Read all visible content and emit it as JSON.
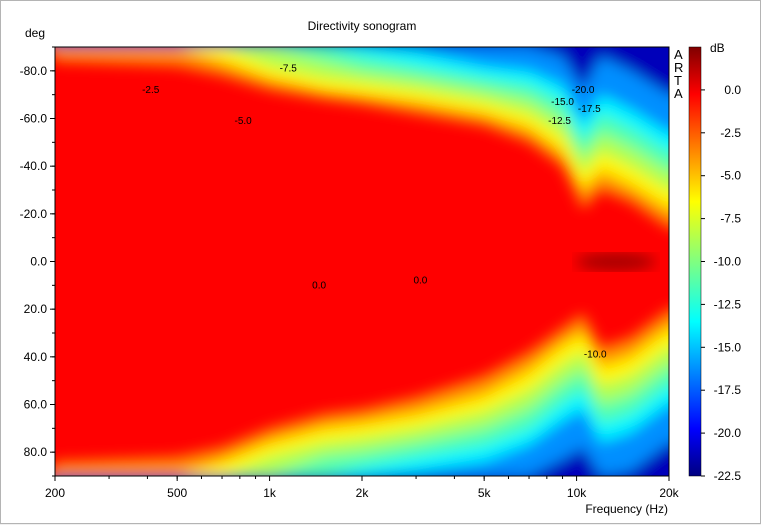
{
  "chart_data": {
    "type": "heatmap",
    "title": "Directivity sonogram",
    "xlabel": "Frequency (Hz)",
    "ylabel": "deg",
    "x_scale": "log",
    "xlim": [
      200,
      20000
    ],
    "ylim": [
      -90,
      90
    ],
    "x_ticks": [
      200,
      500,
      1000,
      2000,
      5000,
      10000,
      20000
    ],
    "x_tick_labels": [
      "200",
      "500",
      "1k",
      "2k",
      "5k",
      "10k",
      "20k"
    ],
    "y_ticks": [
      -80,
      -60,
      -40,
      -20,
      0,
      20,
      40,
      60,
      80
    ],
    "y_tick_labels": [
      "-80.0",
      "-60.0",
      "-40.0",
      "-20.0",
      "0.0",
      "20.0",
      "40.0",
      "60.0",
      "80.0"
    ],
    "colorbar": {
      "label": "dB",
      "range": [
        -22.5,
        2.5
      ],
      "ticks": [
        0,
        -2.5,
        -5,
        -7.5,
        -10,
        -12.5,
        -15,
        -17.5,
        -20,
        -22.5
      ],
      "tick_labels": [
        "0.0",
        "-2.5",
        "-5.0",
        "-7.5",
        "-10.0",
        "-12.5",
        "-15.0",
        "-17.5",
        "-20.0",
        "-22.5"
      ],
      "colormap": "jet"
    },
    "watermark": "ARTA",
    "annotations": [
      {
        "text": "-2.5",
        "freq": 410,
        "deg": -72
      },
      {
        "text": "-7.5",
        "freq": 1150,
        "deg": -81
      },
      {
        "text": "-5.0",
        "freq": 820,
        "deg": -59
      },
      {
        "text": "-20.0",
        "freq": 10500,
        "deg": -72
      },
      {
        "text": "-15.0",
        "freq": 9000,
        "deg": -67
      },
      {
        "text": "-17.5",
        "freq": 11000,
        "deg": -64
      },
      {
        "text": "-12.5",
        "freq": 8800,
        "deg": -59
      },
      {
        "text": "0.0",
        "freq": 1450,
        "deg": 10
      },
      {
        "text": "0.0",
        "freq": 3100,
        "deg": 8
      },
      {
        "text": "-10.0",
        "freq": 11500,
        "deg": 39
      }
    ],
    "contour_series": [
      {
        "level": -2.5,
        "freq": [
          200,
          500,
          700,
          1000,
          1500,
          2000,
          3000,
          5000,
          7000,
          9000,
          10500,
          12000,
          15000,
          20000
        ],
        "deg_up": [
          84,
          82,
          78,
          72,
          68,
          66,
          62,
          57,
          50,
          40,
          22,
          30,
          25,
          14
        ],
        "deg_low": [
          84,
          82,
          78,
          70,
          64,
          62,
          57,
          48,
          38,
          28,
          22,
          36,
          32,
          20
        ]
      },
      {
        "level": -5.0,
        "freq": [
          200,
          500,
          700,
          1000,
          1500,
          2000,
          3000,
          5000,
          7000,
          9000,
          10500,
          12000,
          15000,
          20000
        ],
        "deg_up": [
          90,
          90,
          84,
          77,
          72,
          70,
          67,
          62,
          56,
          46,
          30,
          38,
          32,
          22
        ],
        "deg_low": [
          90,
          90,
          84,
          76,
          70,
          68,
          64,
          56,
          46,
          35,
          30,
          44,
          40,
          28
        ]
      },
      {
        "level": -7.5,
        "freq": [
          200,
          500,
          700,
          1000,
          1500,
          2000,
          3000,
          5000,
          7000,
          9000,
          10500,
          12000,
          15000,
          20000
        ],
        "deg_up": [
          90,
          90,
          90,
          82,
          77,
          75,
          72,
          67,
          62,
          53,
          37,
          46,
          40,
          30
        ],
        "deg_low": [
          90,
          90,
          90,
          82,
          76,
          74,
          70,
          63,
          54,
          43,
          38,
          52,
          48,
          36
        ]
      },
      {
        "level": -10.0,
        "freq": [
          200,
          500,
          700,
          1000,
          1500,
          2000,
          3000,
          5000,
          7000,
          9000,
          10500,
          12000,
          15000,
          20000
        ],
        "deg_up": [
          90,
          90,
          90,
          90,
          84,
          80,
          77,
          72,
          68,
          60,
          44,
          54,
          48,
          38
        ],
        "deg_low": [
          90,
          90,
          90,
          90,
          82,
          80,
          76,
          70,
          62,
          51,
          46,
          60,
          56,
          44
        ]
      },
      {
        "level": -12.5,
        "freq": [
          200,
          500,
          700,
          1000,
          1500,
          2000,
          3000,
          5000,
          7000,
          9000,
          10500,
          12000,
          15000,
          20000
        ],
        "deg_up": [
          90,
          90,
          90,
          90,
          90,
          86,
          82,
          77,
          74,
          67,
          51,
          62,
          56,
          46
        ],
        "deg_low": [
          90,
          90,
          90,
          90,
          90,
          86,
          82,
          77,
          70,
          59,
          54,
          68,
          64,
          52
        ]
      },
      {
        "level": -15.0,
        "freq": [
          200,
          500,
          700,
          1000,
          1500,
          2000,
          3000,
          5000,
          7000,
          9000,
          10500,
          12000,
          15000,
          20000
        ],
        "deg_up": [
          90,
          90,
          90,
          90,
          90,
          90,
          88,
          82,
          80,
          74,
          58,
          70,
          64,
          54
        ],
        "deg_low": [
          90,
          90,
          90,
          90,
          90,
          90,
          88,
          84,
          77,
          67,
          62,
          76,
          72,
          60
        ]
      },
      {
        "level": -20.0,
        "freq": [
          200,
          500,
          700,
          1000,
          1500,
          2000,
          3000,
          5000,
          7000,
          9000,
          10500,
          12000,
          15000,
          20000
        ],
        "deg_up": [
          90,
          90,
          90,
          90,
          90,
          90,
          90,
          90,
          90,
          86,
          72,
          86,
          80,
          70
        ],
        "deg_low": [
          90,
          90,
          90,
          90,
          90,
          90,
          90,
          90,
          90,
          83,
          78,
          90,
          88,
          76
        ]
      }
    ]
  }
}
